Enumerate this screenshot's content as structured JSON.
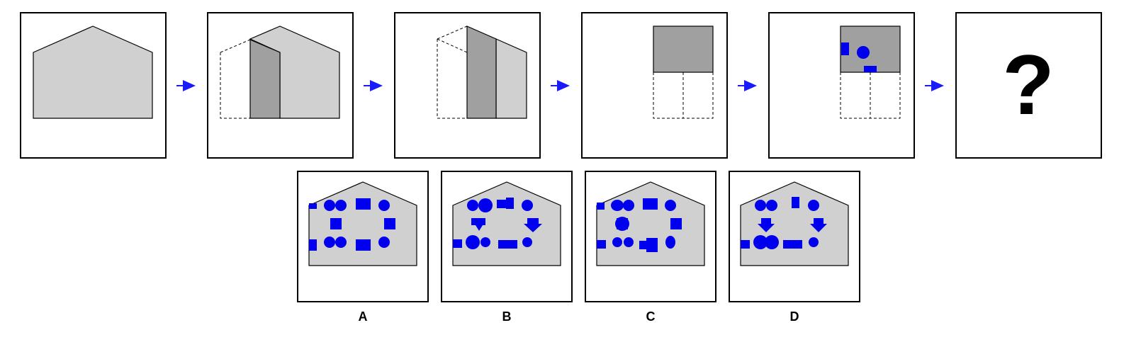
{
  "colors": {
    "dot": "#0000ee",
    "house": "#d0d0d0",
    "fold": "#a0a0a0",
    "arrow": "#1a1aff"
  },
  "sequence": {
    "panels": [
      "flat-house",
      "fold-left-wing",
      "fold-center",
      "folded-square",
      "punched-holes",
      "unknown"
    ],
    "question_mark": "?"
  },
  "options": [
    {
      "label": "A"
    },
    {
      "label": "B"
    },
    {
      "label": "C"
    },
    {
      "label": "D"
    }
  ]
}
